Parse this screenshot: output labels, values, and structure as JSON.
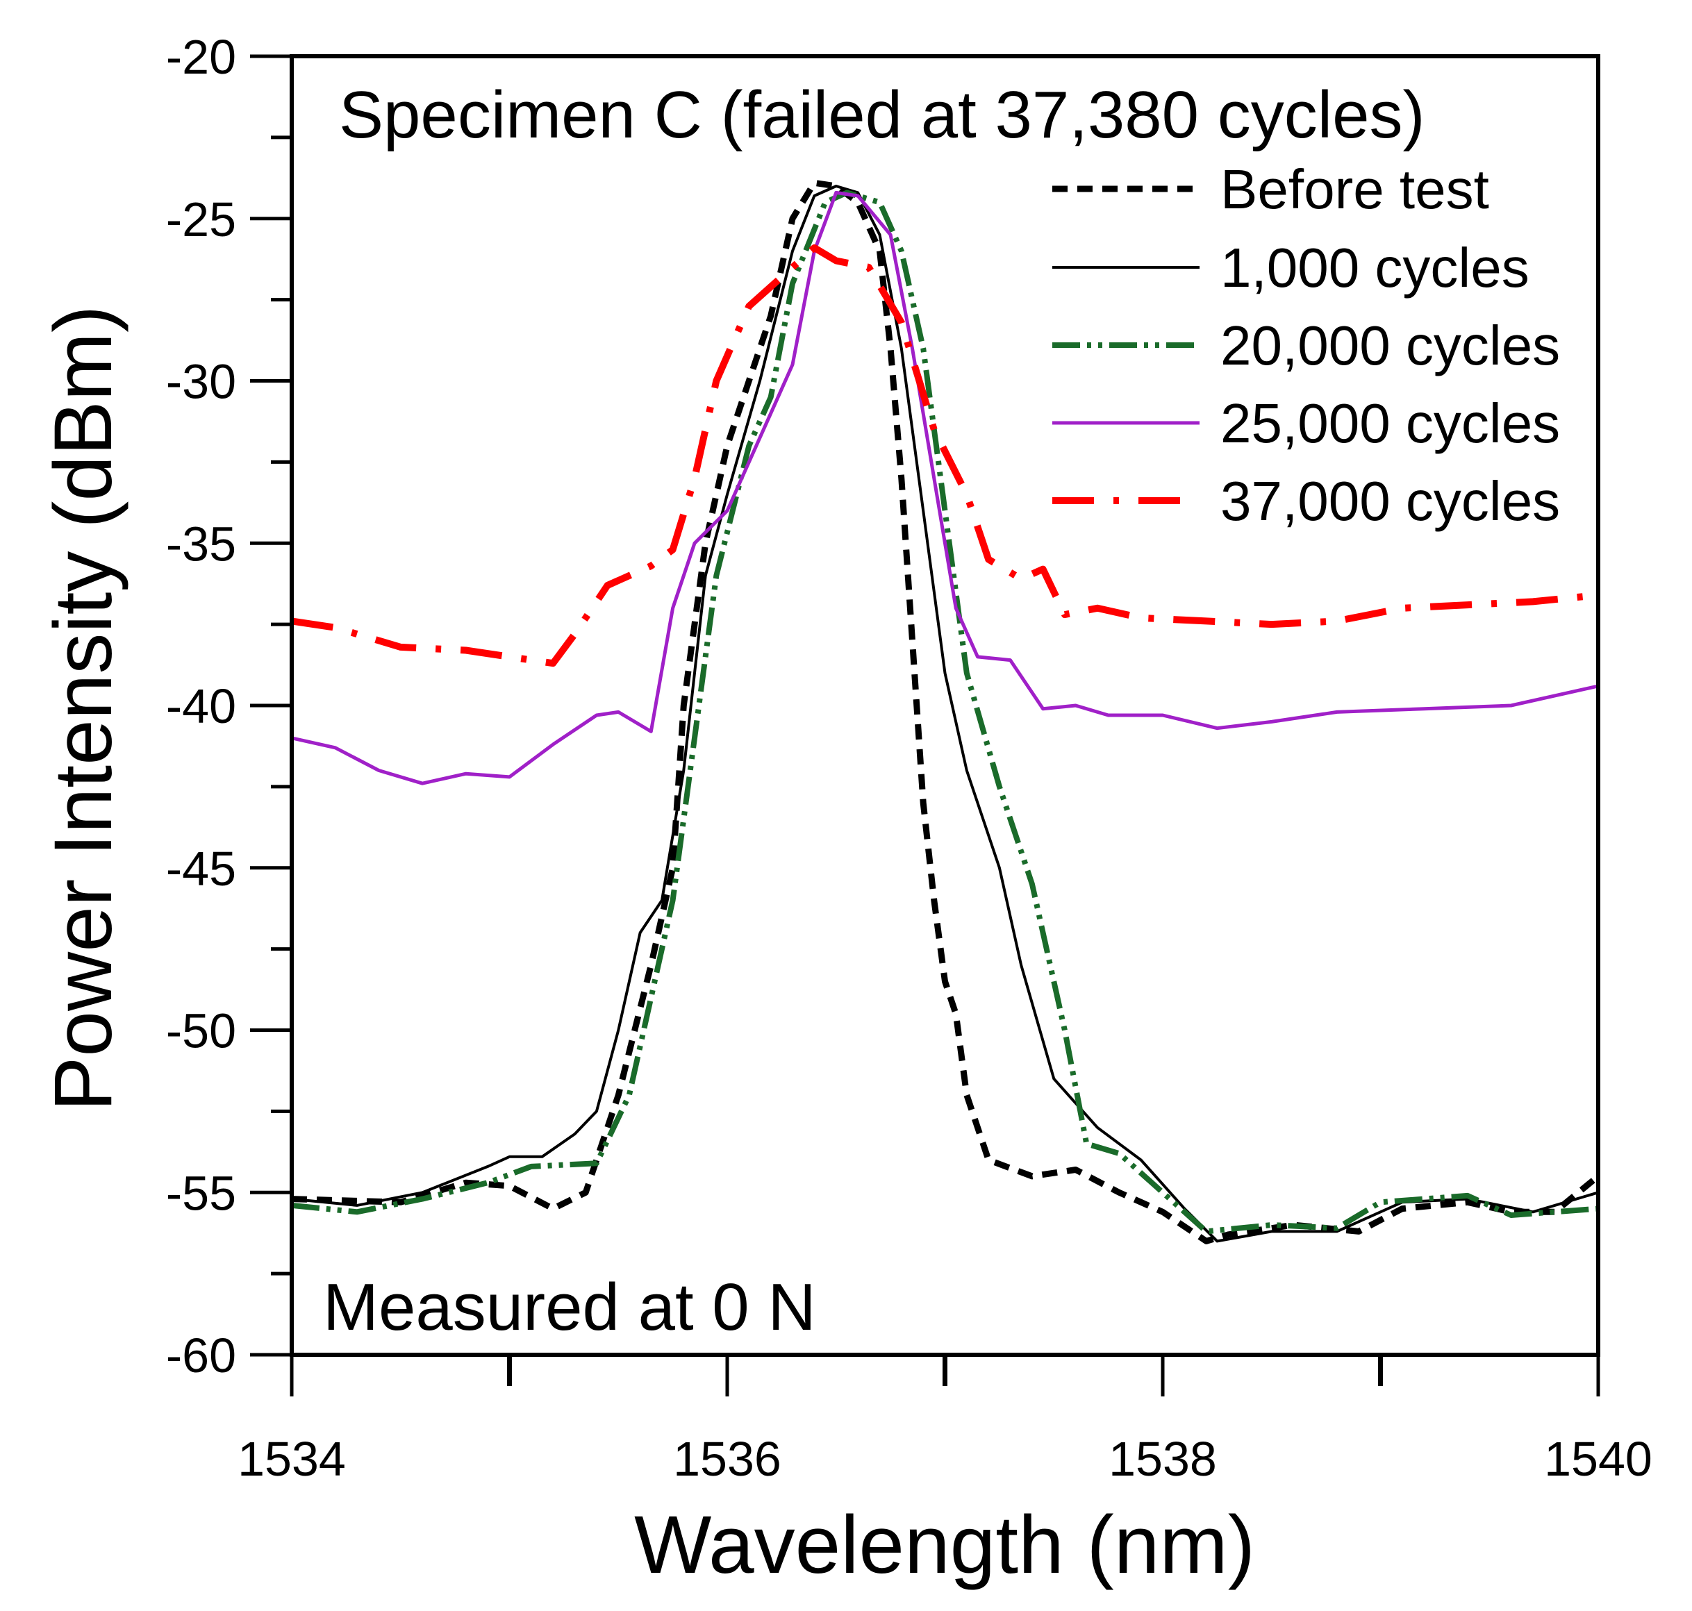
{
  "chart_data": {
    "type": "line",
    "title": "Specimen C (failed at 37,380 cycles)",
    "annotation": "Measured at 0 N",
    "xlabel": "Wavelength (nm)",
    "ylabel": "Power Intensity (dBm)",
    "xlim": [
      1534,
      1540
    ],
    "ylim": [
      -60,
      -20
    ],
    "x_ticks": [
      "1534",
      "1536",
      "1538",
      "1540"
    ],
    "y_ticks": [
      "-20",
      "-25",
      "-30",
      "-35",
      "-40",
      "-45",
      "-50",
      "-55",
      "-60"
    ],
    "grid": false,
    "legend_position": "top-right",
    "series": [
      {
        "name": "Before test",
        "color": "#000000",
        "style": "dashed",
        "x": [
          1534,
          1534.5,
          1534.8,
          1535,
          1535.2,
          1535.35,
          1535.5,
          1535.65,
          1535.75,
          1535.8,
          1535.9,
          1536,
          1536.1,
          1536.2,
          1536.3,
          1536.4,
          1536.5,
          1536.6,
          1536.7,
          1536.75,
          1536.8,
          1536.85,
          1536.9,
          1536.95,
          1537,
          1537.05,
          1537.1,
          1537.2,
          1537.4,
          1537.6,
          1537.8,
          1538,
          1538.2,
          1538.3,
          1538.6,
          1538.9,
          1539.1,
          1539.4,
          1539.6,
          1539.8,
          1540
        ],
        "y": [
          -55.2,
          -55.3,
          -54.7,
          -54.8,
          -55.5,
          -55,
          -52,
          -48,
          -45,
          -40,
          -35,
          -32,
          -30,
          -28,
          -25,
          -23.9,
          -24,
          -24.5,
          -26,
          -29,
          -33,
          -38,
          -43,
          -46,
          -48.5,
          -49.5,
          -52,
          -54,
          -54.5,
          -54.3,
          -55,
          -55.6,
          -56.5,
          -56.3,
          -56,
          -56.2,
          -55.5,
          -55.3,
          -55.6,
          -55.6,
          -54.5
        ]
      },
      {
        "name": "1,000 cycles",
        "color": "#000000",
        "style": "solid",
        "x": [
          1534,
          1534.3,
          1534.6,
          1534.9,
          1535,
          1535.15,
          1535.3,
          1535.4,
          1535.5,
          1535.6,
          1535.7,
          1535.8,
          1535.9,
          1536,
          1536.15,
          1536.3,
          1536.4,
          1536.5,
          1536.6,
          1536.7,
          1536.8,
          1536.9,
          1537,
          1537.1,
          1537.25,
          1537.35,
          1537.5,
          1537.7,
          1537.9,
          1538.1,
          1538.25,
          1538.5,
          1538.8,
          1539.1,
          1539.4,
          1539.7,
          1540
        ],
        "y": [
          -55.2,
          -55.4,
          -55,
          -54.2,
          -53.9,
          -53.9,
          -53.2,
          -52.5,
          -50,
          -47,
          -46,
          -42,
          -36,
          -33.5,
          -30,
          -26,
          -24.3,
          -24,
          -24.2,
          -25.5,
          -29,
          -34,
          -39,
          -42,
          -45,
          -48,
          -51.5,
          -53,
          -54,
          -55.5,
          -56.5,
          -56.2,
          -56.2,
          -55.3,
          -55.2,
          -55.6,
          -55
        ]
      },
      {
        "name": "20,000 cycles",
        "color": "#1a6b2a",
        "style": "dash-dot-dot",
        "x": [
          1534,
          1534.3,
          1534.6,
          1534.9,
          1535.1,
          1535.4,
          1535.55,
          1535.65,
          1535.75,
          1535.85,
          1535.95,
          1536.1,
          1536.2,
          1536.3,
          1536.45,
          1536.55,
          1536.7,
          1536.8,
          1536.9,
          1537,
          1537.1,
          1537.25,
          1537.4,
          1537.55,
          1537.65,
          1537.8,
          1538,
          1538.2,
          1538.5,
          1538.8,
          1539,
          1539.4,
          1539.6,
          1540
        ],
        "y": [
          -55.4,
          -55.6,
          -55.2,
          -54.7,
          -54.2,
          -54.1,
          -52,
          -49,
          -46,
          -41,
          -36,
          -32,
          -30.5,
          -27,
          -24.5,
          -24.2,
          -24.5,
          -26,
          -29,
          -34,
          -39,
          -42.5,
          -45.5,
          -50,
          -53.5,
          -53.8,
          -55,
          -56.2,
          -56,
          -56.1,
          -55.3,
          -55.1,
          -55.7,
          -55.5
        ]
      },
      {
        "name": "25,000 cycles",
        "color": "#a020c8",
        "style": "solid",
        "x": [
          1534,
          1534.2,
          1534.4,
          1534.6,
          1534.8,
          1535,
          1535.2,
          1535.4,
          1535.5,
          1535.65,
          1535.75,
          1535.85,
          1536,
          1536.2,
          1536.3,
          1536.4,
          1536.5,
          1536.6,
          1536.75,
          1536.85,
          1536.95,
          1537.05,
          1537.15,
          1537.3,
          1537.45,
          1537.6,
          1537.75,
          1538,
          1538.25,
          1538.5,
          1538.8,
          1539.2,
          1539.6,
          1540
        ],
        "y": [
          -41,
          -41.3,
          -42,
          -42.4,
          -42.1,
          -42.2,
          -41.2,
          -40.3,
          -40.2,
          -40.8,
          -37,
          -35,
          -34,
          -31,
          -29.5,
          -26,
          -24.2,
          -24.3,
          -25.5,
          -29,
          -33,
          -37,
          -38.5,
          -38.6,
          -40.1,
          -40,
          -40.3,
          -40.3,
          -40.7,
          -40.5,
          -40.2,
          -40.1,
          -40,
          -39.4
        ]
      },
      {
        "name": "37,000 cycles",
        "color": "#ff0000",
        "style": "long-dash",
        "x": [
          1534,
          1534.2,
          1534.5,
          1534.8,
          1535,
          1535.2,
          1535.3,
          1535.45,
          1535.65,
          1535.75,
          1535.85,
          1535.95,
          1536.1,
          1536.25,
          1536.4,
          1536.5,
          1536.65,
          1536.8,
          1536.95,
          1537.1,
          1537.2,
          1537.35,
          1537.45,
          1537.55,
          1537.7,
          1537.9,
          1538.2,
          1538.5,
          1538.8,
          1539.1,
          1539.4,
          1539.7,
          1540
        ],
        "y": [
          -37.4,
          -37.6,
          -38.2,
          -38.3,
          -38.5,
          -38.7,
          -37.8,
          -36.3,
          -35.7,
          -35.2,
          -33,
          -30,
          -27.7,
          -26.8,
          -25.9,
          -26.3,
          -26.5,
          -28.2,
          -31.5,
          -33.5,
          -35.5,
          -36.1,
          -35.8,
          -37.2,
          -37,
          -37.3,
          -37.4,
          -37.5,
          -37.4,
          -37,
          -36.9,
          -36.8,
          -36.6
        ]
      }
    ]
  }
}
